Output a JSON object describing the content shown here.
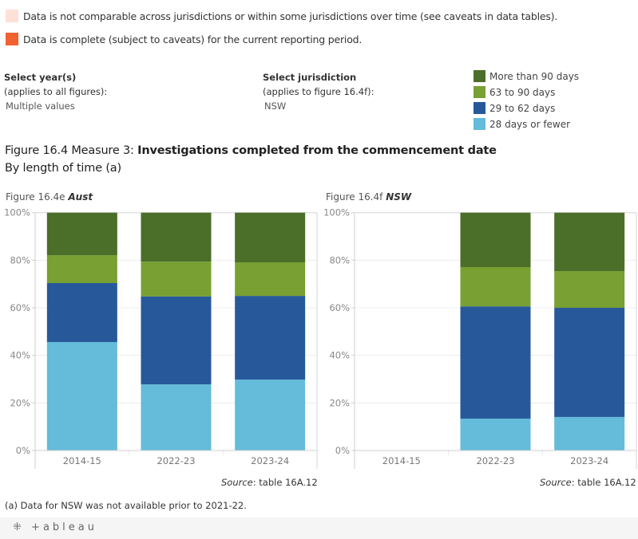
{
  "notes": [
    {
      "text": "Data is not comparable across jurisdictions or within some jurisdictions over time (see caveats in data tables).",
      "color": "#fde0d6"
    },
    {
      "text": "Data is complete (subject to caveats) for the current reporting period.",
      "color": "#f26130"
    }
  ],
  "filters": {
    "year": {
      "title": "Select year(s)",
      "subtitle": "(applies to all figures):",
      "value": "Multiple values"
    },
    "jurisdiction": {
      "title": "Select jurisdiction",
      "subtitle": "(applies to figure 16.4f):",
      "value": "NSW"
    }
  },
  "legend": [
    {
      "label": "More than 90 days",
      "color": "#4b6e29"
    },
    {
      "label": "63 to 90 days",
      "color": "#78a032"
    },
    {
      "label": "29 to 62 days",
      "color": "#27599a"
    },
    {
      "label": "28 days or fewer",
      "color": "#64bbda"
    }
  ],
  "figure": {
    "prefix": "Figure 16.4 Measure 3: ",
    "title_bold": "Investigations completed from the  commencement date",
    "subtitle": "By length of time (a)"
  },
  "footnote": "(a) Data for NSW was not available prior to 2021-22.",
  "tableau_logo": "+ableau",
  "chart_data": [
    {
      "type": "bar",
      "stacked": true,
      "title_prefix": "Figure 16.4e ",
      "title_em": "Aust",
      "categories": [
        "2014-15",
        "2022-23",
        "2023-24"
      ],
      "series": [
        {
          "name": "28 days or fewer",
          "color": "#64bbda",
          "values": [
            45.6,
            27.8,
            29.8
          ]
        },
        {
          "name": "29 to 62 days",
          "color": "#27599a",
          "values": [
            24.8,
            37.0,
            35.2
          ]
        },
        {
          "name": "63 to 90 days",
          "color": "#78a032",
          "values": [
            11.7,
            14.6,
            14.1
          ]
        },
        {
          "name": "More than 90 days",
          "color": "#4b6e29",
          "values": [
            17.9,
            20.6,
            20.9
          ]
        }
      ],
      "ylabel": "",
      "xlabel": "",
      "ylim": [
        0,
        100
      ],
      "yticks": [
        "0%",
        "20%",
        "40%",
        "60%",
        "80%",
        "100%"
      ],
      "grid": true,
      "source_label": "Source",
      "source_text": ": table 16A.12"
    },
    {
      "type": "bar",
      "stacked": true,
      "title_prefix": "Figure 16.4f ",
      "title_em": "NSW",
      "categories": [
        "2014-15",
        "2022-23",
        "2023-24"
      ],
      "series": [
        {
          "name": "28 days or fewer",
          "color": "#64bbda",
          "values": [
            null,
            13.4,
            14.1
          ]
        },
        {
          "name": "29 to 62 days",
          "color": "#27599a",
          "values": [
            null,
            47.2,
            45.9
          ]
        },
        {
          "name": "63 to 90 days",
          "color": "#78a032",
          "values": [
            null,
            16.5,
            15.4
          ]
        },
        {
          "name": "More than 90 days",
          "color": "#4b6e29",
          "values": [
            null,
            22.9,
            24.6
          ]
        }
      ],
      "ylabel": "",
      "xlabel": "",
      "ylim": [
        0,
        100
      ],
      "yticks": [
        "0%",
        "20%",
        "40%",
        "60%",
        "80%",
        "100%"
      ],
      "grid": true,
      "source_label": "Source",
      "source_text": ": table 16A.12"
    }
  ]
}
